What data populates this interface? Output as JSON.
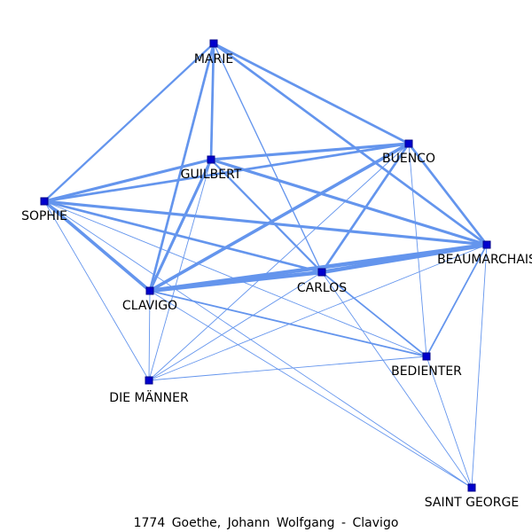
{
  "caption": "1774  Goethe,  Johann  Wolfgang  -  Clavigo",
  "colors": {
    "edge": "#6495ED",
    "node_fill": "#0000CD",
    "node_stroke": "#00008B",
    "label": "#000000"
  },
  "nodes": [
    {
      "id": "marie",
      "label": "MARIE"
    },
    {
      "id": "guilbert",
      "label": "GUILBERT"
    },
    {
      "id": "buenco",
      "label": "BUENCO"
    },
    {
      "id": "sophie",
      "label": "SOPHIE"
    },
    {
      "id": "beaumarchais",
      "label": "BEAUMARCHAIS"
    },
    {
      "id": "carlos",
      "label": "CARLOS"
    },
    {
      "id": "clavigo",
      "label": "CLAVIGO"
    },
    {
      "id": "bedienter",
      "label": "BEDIENTER"
    },
    {
      "id": "die_maenner",
      "label": "DIE MÄNNER"
    },
    {
      "id": "saint_george",
      "label": "SAINT GEORGE"
    }
  ],
  "edges": [
    {
      "source": "marie",
      "target": "guilbert",
      "weight": 3
    },
    {
      "source": "marie",
      "target": "buenco",
      "weight": 3
    },
    {
      "source": "marie",
      "target": "sophie",
      "weight": 2.5
    },
    {
      "source": "marie",
      "target": "beaumarchais",
      "weight": 3
    },
    {
      "source": "marie",
      "target": "clavigo",
      "weight": 3
    },
    {
      "source": "marie",
      "target": "carlos",
      "weight": 1.5
    },
    {
      "source": "guilbert",
      "target": "buenco",
      "weight": 3.5
    },
    {
      "source": "guilbert",
      "target": "sophie",
      "weight": 3.5
    },
    {
      "source": "guilbert",
      "target": "beaumarchais",
      "weight": 3.5
    },
    {
      "source": "guilbert",
      "target": "carlos",
      "weight": 2.5
    },
    {
      "source": "guilbert",
      "target": "clavigo",
      "weight": 3.5
    },
    {
      "source": "guilbert",
      "target": "die_maenner",
      "weight": 1
    },
    {
      "source": "buenco",
      "target": "sophie",
      "weight": 3
    },
    {
      "source": "buenco",
      "target": "beaumarchais",
      "weight": 3
    },
    {
      "source": "buenco",
      "target": "carlos",
      "weight": 3
    },
    {
      "source": "buenco",
      "target": "clavigo",
      "weight": 4
    },
    {
      "source": "buenco",
      "target": "bedienter",
      "weight": 1
    },
    {
      "source": "buenco",
      "target": "die_maenner",
      "weight": 1
    },
    {
      "source": "sophie",
      "target": "beaumarchais",
      "weight": 3.5
    },
    {
      "source": "sophie",
      "target": "carlos",
      "weight": 3
    },
    {
      "source": "sophie",
      "target": "clavigo",
      "weight": 4
    },
    {
      "source": "sophie",
      "target": "bedienter",
      "weight": 1
    },
    {
      "source": "sophie",
      "target": "die_maenner",
      "weight": 1
    },
    {
      "source": "sophie",
      "target": "saint_george",
      "weight": 1
    },
    {
      "source": "beaumarchais",
      "target": "carlos",
      "weight": 5
    },
    {
      "source": "beaumarchais",
      "target": "clavigo",
      "weight": 5
    },
    {
      "source": "beaumarchais",
      "target": "bedienter",
      "weight": 2
    },
    {
      "source": "beaumarchais",
      "target": "die_maenner",
      "weight": 1
    },
    {
      "source": "beaumarchais",
      "target": "saint_george",
      "weight": 1
    },
    {
      "source": "carlos",
      "target": "clavigo",
      "weight": 5
    },
    {
      "source": "carlos",
      "target": "bedienter",
      "weight": 2
    },
    {
      "source": "carlos",
      "target": "die_maenner",
      "weight": 1
    },
    {
      "source": "carlos",
      "target": "saint_george",
      "weight": 1
    },
    {
      "source": "clavigo",
      "target": "bedienter",
      "weight": 2
    },
    {
      "source": "clavigo",
      "target": "die_maenner",
      "weight": 1
    },
    {
      "source": "clavigo",
      "target": "saint_george",
      "weight": 1
    },
    {
      "source": "bedienter",
      "target": "die_maenner",
      "weight": 1
    },
    {
      "source": "bedienter",
      "target": "saint_george",
      "weight": 1
    }
  ]
}
